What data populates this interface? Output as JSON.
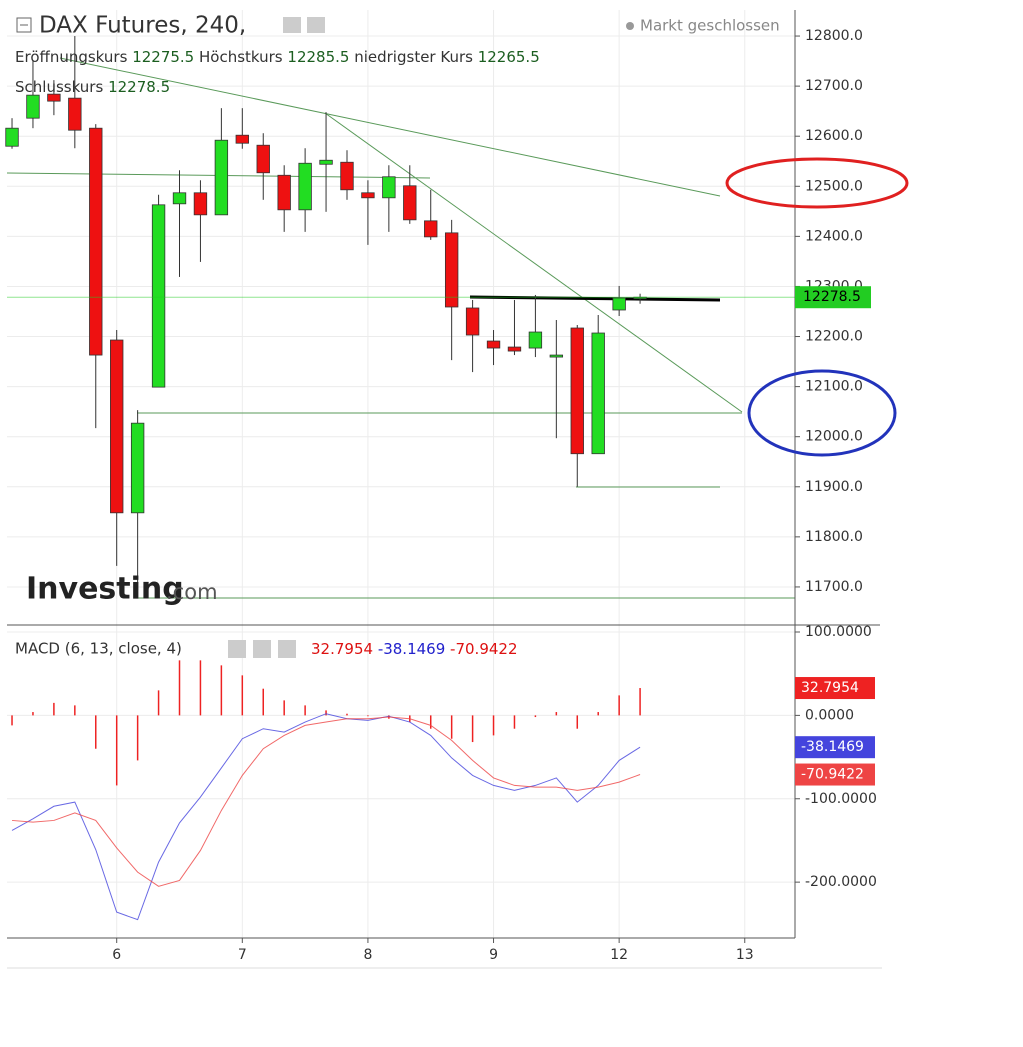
{
  "chart_data": [
    {
      "type": "candlestick",
      "title": "DAX Futures, 240,",
      "status": "Markt geschlossen",
      "ohlc_labels": {
        "open": "Eröffnungskurs",
        "high": "Höchstkurs",
        "low": "niedrigster Kurs",
        "close": "Schlusskurs"
      },
      "logo": {
        "main": "Investing",
        "suffix": ".com"
      },
      "x": [
        0,
        1,
        2,
        3,
        4,
        5,
        6,
        7,
        8,
        9,
        10,
        11,
        12,
        13,
        14,
        15,
        16,
        17,
        18,
        19,
        20,
        21,
        22,
        23,
        24,
        25,
        26,
        27,
        28,
        29,
        30
      ],
      "open": [
        12580,
        12636,
        12684,
        12676,
        12616,
        12193,
        11848,
        12099,
        12465,
        12487,
        12443,
        12602,
        12582,
        12522,
        12453,
        12544,
        12548,
        12487,
        12477,
        12501,
        12431,
        12407,
        12257,
        12191,
        12179,
        12177,
        12159,
        12217,
        11966,
        12253,
        12275.5
      ],
      "high": [
        12636,
        12752,
        12712,
        12800,
        12624,
        12213,
        12053,
        12483,
        12532,
        12512,
        12656,
        12656,
        12606,
        12542,
        12576,
        12648,
        12572,
        12512,
        12542,
        12542,
        12493,
        12433,
        12273,
        12213,
        12273,
        12283,
        12233,
        12223,
        12243,
        12301,
        12285.5
      ],
      "low": [
        12575,
        12616,
        12642,
        12576,
        12017,
        11742,
        11694,
        12099,
        12319,
        12349,
        12443,
        12575,
        12473,
        12409,
        12409,
        12449,
        12473,
        12383,
        12409,
        12425,
        12393,
        12153,
        12129,
        12143,
        12163,
        12159,
        11997,
        11900,
        11966,
        12241,
        12265.5
      ],
      "close": [
        12616,
        12682,
        12670,
        12612,
        12163,
        11848,
        12027,
        12463,
        12487,
        12443,
        12592,
        12586,
        12527,
        12453,
        12546,
        12552,
        12493,
        12477,
        12519,
        12433,
        12399,
        12259,
        12203,
        12177,
        12171,
        12209,
        12163,
        11966,
        12207,
        12277,
        12278.5
      ],
      "up_color": "#22dd22",
      "down_color": "#ee1111",
      "last_price_color": "#22cc22",
      "xlim": [
        -0.24,
        37.4
      ],
      "xticks": [
        {
          "value": 5,
          "label": "6"
        },
        {
          "value": 11,
          "label": "7"
        },
        {
          "value": 17,
          "label": "8"
        },
        {
          "value": 23,
          "label": "9"
        },
        {
          "value": 29,
          "label": "12"
        },
        {
          "value": 35,
          "label": "13"
        }
      ],
      "ylim": [
        11624,
        12852
      ],
      "yticks": [
        {
          "value": 11700,
          "label": "11700.0"
        },
        {
          "value": 11800,
          "label": "11800.0"
        },
        {
          "value": 11900,
          "label": "11900.0"
        },
        {
          "value": 12000,
          "label": "12000.0"
        },
        {
          "value": 12100,
          "label": "12100.0"
        },
        {
          "value": 12200,
          "label": "12200.0"
        },
        {
          "value": 12300,
          "label": "12300.0"
        },
        {
          "value": 12400,
          "label": "12400.0"
        },
        {
          "value": 12500,
          "label": "12500.0"
        },
        {
          "value": 12600,
          "label": "12600.0"
        },
        {
          "value": 12700,
          "label": "12700.0"
        },
        {
          "value": 12800,
          "label": "12800.0"
        }
      ],
      "grid": true
    },
    {
      "type": "macd",
      "title": "MACD (6, 13, close, 4)",
      "histogram": {
        "color": "#ee2222",
        "values": [
          -12,
          4,
          15,
          12,
          -40,
          -84,
          -54,
          30,
          66,
          66,
          60,
          48,
          32,
          18,
          12,
          6,
          2,
          -1,
          -4,
          -8,
          -16,
          -28,
          -32,
          -24,
          -16,
          -2,
          4,
          -16,
          4,
          24,
          32.7954
        ]
      },
      "series": [
        {
          "color": "#4444dd",
          "values": [
            -138,
            -124,
            -109,
            -104,
            -161,
            -236,
            -245,
            -176,
            -129,
            -98,
            -63,
            -28,
            -16,
            -20,
            -8,
            2,
            -4,
            -6,
            -1,
            -8,
            -24,
            -51,
            -72,
            -84,
            -90,
            -84,
            -75,
            -104,
            -84,
            -54,
            -38.1469
          ]
        },
        {
          "color": "#ee4444",
          "values": [
            -126,
            -128,
            -126,
            -117,
            -126,
            -159,
            -188,
            -205,
            -198,
            -162,
            -114,
            -72,
            -40,
            -24,
            -12,
            -8,
            -4,
            -4,
            -2,
            -4,
            -12,
            -30,
            -54,
            -75,
            -84,
            -86,
            -86,
            -90,
            -86,
            -80,
            -70.9422
          ]
        }
      ],
      "ylim": [
        -267,
        108.4
      ],
      "yticks": [
        {
          "value": -200,
          "label": "-200.0000"
        },
        {
          "value": -100,
          "label": "-100.0000"
        },
        {
          "value": 0,
          "label": "0.0000"
        },
        {
          "value": 100,
          "label": "100.0000"
        }
      ],
      "grid": true
    }
  ]
}
